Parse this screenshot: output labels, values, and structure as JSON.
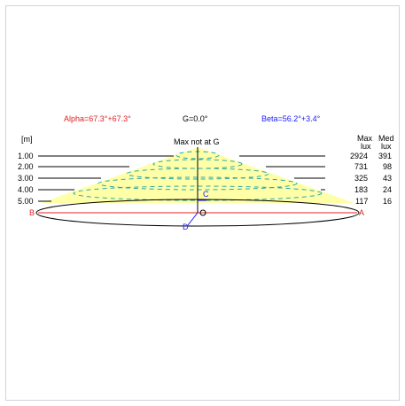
{
  "header": {
    "alpha": "Alpha=67.3°+67.3°",
    "gamma": "G=0.0°",
    "beta": "Beta=56.2°+3.4°"
  },
  "diagram": {
    "unit_label": "[m]",
    "center_label": "Max not at G",
    "max_header": [
      "Max",
      "lux"
    ],
    "med_header": [
      "Med",
      "lux"
    ],
    "rows": [
      {
        "distance": "1.00",
        "max": "2924",
        "med": "391"
      },
      {
        "distance": "2.00",
        "max": "731",
        "med": "98"
      },
      {
        "distance": "3.00",
        "max": "325",
        "med": "43"
      },
      {
        "distance": "4.00",
        "max": "183",
        "med": "24"
      },
      {
        "distance": "5.00",
        "max": "117",
        "med": "16"
      }
    ],
    "points": {
      "a": "A",
      "b": "B",
      "c": "C",
      "d": "D"
    }
  },
  "colors": {
    "cone_fill": "#ffffa8",
    "contour": "#2aa8a8",
    "red": "#e02020",
    "blue": "#1a1aff"
  }
}
